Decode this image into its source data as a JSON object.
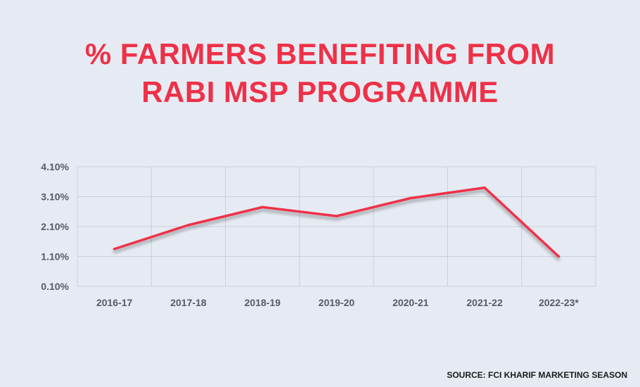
{
  "title_lines": [
    "% FARMERS BENEFITING FROM",
    "RABI MSP PROGRAMME"
  ],
  "source": "SOURCE: FCI KHARIF MARKETING SEASON",
  "colors": {
    "line": "#ee3148",
    "grid": "#c9cfd8",
    "title": "#ee3148"
  },
  "chart_data": {
    "type": "line",
    "title": "% FARMERS BENEFITING FROM RABI MSP PROGRAMME",
    "categories": [
      "2016-17",
      "2017-18",
      "2018-19",
      "2019-20",
      "2020-21",
      "2021-22",
      "2022-23*"
    ],
    "series": [
      {
        "values": [
          1.35,
          2.15,
          2.75,
          2.45,
          3.05,
          3.4,
          1.1
        ]
      }
    ],
    "y_ticks": [
      "4.10%",
      "3.10%",
      "2.10%",
      "1.10%",
      "0.10%"
    ],
    "y_tick_values": [
      4.1,
      3.1,
      2.1,
      1.1,
      0.1
    ],
    "ylim": [
      0.1,
      4.1
    ],
    "xlabel": "",
    "ylabel": "",
    "grid": true,
    "legend": "none"
  }
}
